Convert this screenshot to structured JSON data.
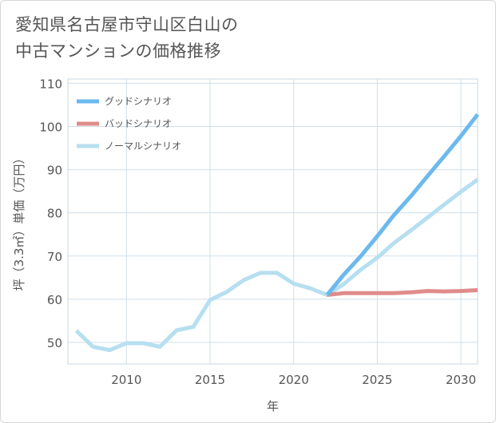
{
  "title": {
    "line1": "愛知県名古屋市守山区白山の",
    "line2": "中古マンションの価格推移"
  },
  "chart_data": {
    "type": "line",
    "title": "愛知県名古屋市守山区白山の中古マンションの価格推移",
    "xlabel": "年",
    "ylabel": "坪（3.3㎡）単価（万円）",
    "xlim": [
      2006.5,
      2031
    ],
    "ylim": [
      45,
      111
    ],
    "xticks": [
      2010,
      2015,
      2020,
      2025,
      2030
    ],
    "yticks": [
      50,
      60,
      70,
      80,
      90,
      100,
      110
    ],
    "grid": true,
    "legend_position": "top-left",
    "series": [
      {
        "name": "グッドシナリオ",
        "color": "#6cb9ee",
        "x": [
          2022,
          2023,
          2024,
          2025,
          2026,
          2027,
          2028,
          2029,
          2030,
          2031
        ],
        "y": [
          61.0,
          65.7,
          69.9,
          74.6,
          79.5,
          83.8,
          88.5,
          93.1,
          97.8,
          102.8
        ]
      },
      {
        "name": "バッドシナリオ",
        "color": "#e08c8c",
        "x": [
          2022,
          2023,
          2024,
          2025,
          2026,
          2027,
          2028,
          2029,
          2030,
          2031
        ],
        "y": [
          61.0,
          61.4,
          61.4,
          61.4,
          61.4,
          61.6,
          61.9,
          61.8,
          61.9,
          62.1
        ]
      },
      {
        "name": "ノーマルシナリオ",
        "color": "#b6dff0",
        "x": [
          2007,
          2008,
          2009,
          2010,
          2011,
          2012,
          2013,
          2014,
          2015,
          2016,
          2017,
          2018,
          2019,
          2020,
          2021,
          2022,
          2023,
          2024,
          2025,
          2026,
          2027,
          2028,
          2029,
          2030,
          2031
        ],
        "y": [
          52.7,
          49.0,
          48.2,
          49.8,
          49.8,
          49.0,
          52.8,
          53.6,
          59.8,
          61.7,
          64.4,
          66.1,
          66.1,
          63.6,
          62.5,
          61.0,
          63.5,
          66.8,
          69.6,
          73.0,
          75.9,
          78.9,
          81.9,
          84.9,
          87.7
        ]
      }
    ]
  }
}
